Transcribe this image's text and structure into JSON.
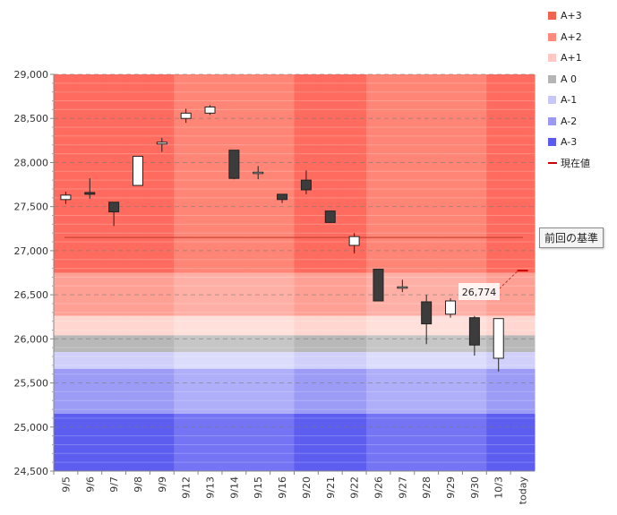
{
  "chart_data": {
    "type": "candlestick",
    "title": "",
    "xlabel": "",
    "ylabel": "",
    "ylim": [
      24500,
      29000
    ],
    "yticks": [
      24500,
      25000,
      25500,
      26000,
      26500,
      27000,
      27500,
      28000,
      28500,
      29000
    ],
    "ytick_labels": [
      "24,500",
      "25,000",
      "25,500",
      "26,000",
      "26,500",
      "27,000",
      "27,500",
      "28,000",
      "28,500",
      "29,000"
    ],
    "grid": true,
    "categories": [
      "9/5",
      "9/6",
      "9/7",
      "9/8",
      "9/9",
      "9/12",
      "9/13",
      "9/14",
      "9/15",
      "9/16",
      "9/20",
      "9/21",
      "9/22",
      "9/26",
      "9/27",
      "9/28",
      "9/29",
      "9/30",
      "10/3",
      "today"
    ],
    "candles": [
      {
        "date": "9/5",
        "open": 27580,
        "high": 27670,
        "low": 27530,
        "close": 27630
      },
      {
        "date": "9/6",
        "open": 27660,
        "high": 27820,
        "low": 27590,
        "close": 27640
      },
      {
        "date": "9/7",
        "open": 27550,
        "high": 27550,
        "low": 27280,
        "close": 27440
      },
      {
        "date": "9/8",
        "open": 27740,
        "high": 28070,
        "low": 27740,
        "close": 28070
      },
      {
        "date": "9/9",
        "open": 28210,
        "high": 28280,
        "low": 28120,
        "close": 28230
      },
      {
        "date": "9/12",
        "open": 28500,
        "high": 28610,
        "low": 28450,
        "close": 28560
      },
      {
        "date": "9/13",
        "open": 28560,
        "high": 28650,
        "low": 28540,
        "close": 28630
      },
      {
        "date": "9/14",
        "open": 28140,
        "high": 28140,
        "low": 27810,
        "close": 27820
      },
      {
        "date": "9/15",
        "open": 27880,
        "high": 27960,
        "low": 27810,
        "close": 27890
      },
      {
        "date": "9/16",
        "open": 27640,
        "high": 27640,
        "low": 27540,
        "close": 27580
      },
      {
        "date": "9/20",
        "open": 27800,
        "high": 27910,
        "low": 27640,
        "close": 27690
      },
      {
        "date": "9/21",
        "open": 27450,
        "high": 27450,
        "low": 27320,
        "close": 27320
      },
      {
        "date": "9/22",
        "open": 27060,
        "high": 27200,
        "low": 26970,
        "close": 27160
      },
      {
        "date": "9/26",
        "open": 26790,
        "high": 26790,
        "low": 26430,
        "close": 26430
      },
      {
        "date": "9/27",
        "open": 26580,
        "high": 26670,
        "low": 26530,
        "close": 26590
      },
      {
        "date": "9/28",
        "open": 26420,
        "high": 26500,
        "low": 25940,
        "close": 26170
      },
      {
        "date": "9/29",
        "open": 26280,
        "high": 26460,
        "low": 26240,
        "close": 26430
      },
      {
        "date": "9/30",
        "open": 26240,
        "high": 26260,
        "low": 25810,
        "close": 25930
      },
      {
        "date": "10/3",
        "open": 25780,
        "high": 26230,
        "low": 25630,
        "close": 26230
      }
    ],
    "bands": [
      {
        "name": "A+3",
        "from": 26750,
        "to": 29000,
        "color": "#ff6b5e",
        "color_alt": "#ff8676"
      },
      {
        "name": "A+2",
        "from": 26260,
        "to": 26750,
        "color": "#ffa095",
        "color_alt": "#ffb0a6"
      },
      {
        "name": "A+1",
        "from": 26040,
        "to": 26260,
        "color": "#ffd6d0",
        "color_alt": "#ffe0db"
      },
      {
        "name": "A 0",
        "from": 25850,
        "to": 26040,
        "color": "#b8b8b8",
        "color_alt": "#c6c6c6"
      },
      {
        "name": "A-1",
        "from": 25660,
        "to": 25850,
        "color": "#d0d0fb",
        "color_alt": "#dcdcfd"
      },
      {
        "name": "A-2",
        "from": 25150,
        "to": 25660,
        "color": "#9c9cf6",
        "color_alt": "#aeaef9"
      },
      {
        "name": "A-3",
        "from": 24500,
        "to": 25150,
        "color": "#5d5df0",
        "color_alt": "#7474f4"
      }
    ],
    "shaded_columns": [
      "9/5",
      "9/6",
      "9/7",
      "9/8",
      "9/9",
      "9/20",
      "9/21",
      "9/22",
      "10/3",
      "today"
    ],
    "reference_line": {
      "label": "前回の基準",
      "value": 27150,
      "color": "#c0392b"
    },
    "current_value": {
      "label": "26,774",
      "value": 26774,
      "color": "#cc0000"
    },
    "legend": {
      "position": "top-right",
      "entries": [
        {
          "label": "A+3",
          "color": "#f2634f",
          "kind": "swatch"
        },
        {
          "label": "A+2",
          "color": "#ff8a7c",
          "kind": "swatch"
        },
        {
          "label": "A+1",
          "color": "#ffc8c2",
          "kind": "swatch"
        },
        {
          "label": "A 0",
          "color": "#b4b4b4",
          "kind": "swatch"
        },
        {
          "label": "A-1",
          "color": "#c8c8f8",
          "kind": "swatch"
        },
        {
          "label": "A-2",
          "color": "#9a9af4",
          "kind": "swatch"
        },
        {
          "label": "A-3",
          "color": "#5a5aee",
          "kind": "swatch"
        },
        {
          "label": "現在値",
          "color": "#cc0000",
          "kind": "line"
        }
      ]
    },
    "up_color": "#ffffff",
    "down_color": "#3c3c3c"
  }
}
